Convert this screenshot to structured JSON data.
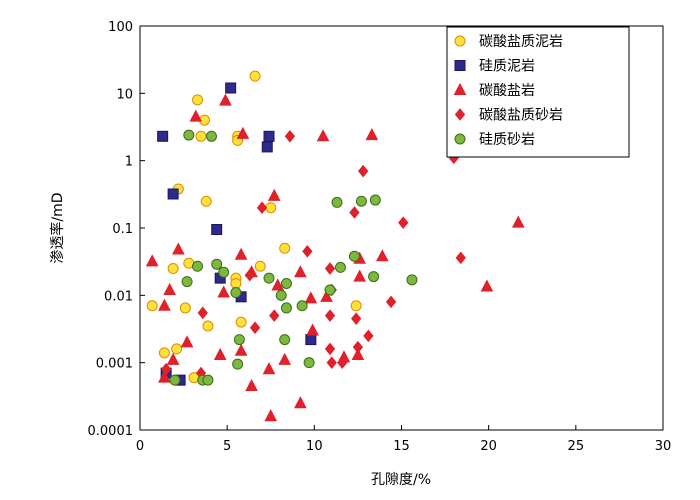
{
  "chart_data": {
    "type": "scatter",
    "xlabel": "孔隙度/%",
    "ylabel": "渗透率/mD",
    "xlim": [
      0,
      30
    ],
    "ylim": [
      0.0001,
      100
    ],
    "yscale": "log",
    "x_ticks": [
      "0",
      "5",
      "10",
      "15",
      "20",
      "25",
      "30"
    ],
    "y_ticks": [
      "0.0001",
      "0.001",
      "0.01",
      "0.1",
      "1",
      "10",
      "100"
    ],
    "grid": false,
    "legend_position": "top-right",
    "series": [
      {
        "name": "碳酸盐质泥岩",
        "marker": "circle",
        "fill": "#FFE33A",
        "stroke": "#E08A00",
        "points": [
          [
            6.6,
            18
          ],
          [
            3.3,
            8
          ],
          [
            3.7,
            4
          ],
          [
            3.5,
            2.3
          ],
          [
            5.6,
            2.3
          ],
          [
            5.6,
            2.0
          ],
          [
            2.2,
            0.38
          ],
          [
            3.8,
            0.25
          ],
          [
            7.5,
            0.2
          ],
          [
            8.3,
            0.05
          ],
          [
            2.8,
            0.03
          ],
          [
            1.9,
            0.025
          ],
          [
            6.9,
            0.027
          ],
          [
            5.5,
            0.018
          ],
          [
            5.5,
            0.015
          ],
          [
            0.7,
            0.007
          ],
          [
            2.6,
            0.0065
          ],
          [
            3.9,
            0.0035
          ],
          [
            12.4,
            0.007
          ],
          [
            5.8,
            0.004
          ],
          [
            2.1,
            0.0016
          ],
          [
            1.4,
            0.0014
          ],
          [
            3.1,
            0.0006
          ]
        ]
      },
      {
        "name": "硅质泥岩",
        "marker": "square",
        "fill": "#2E2A8C",
        "stroke": "#1A175E",
        "points": [
          [
            1.3,
            2.3
          ],
          [
            5.2,
            12
          ],
          [
            7.4,
            2.3
          ],
          [
            7.3,
            1.6
          ],
          [
            1.9,
            0.32
          ],
          [
            4.4,
            0.095
          ],
          [
            4.6,
            0.018
          ],
          [
            5.8,
            0.0095
          ],
          [
            9.8,
            0.0022
          ],
          [
            1.5,
            0.0007
          ],
          [
            2.3,
            0.00055
          ]
        ]
      },
      {
        "name": "碳酸盐岩",
        "marker": "triangle",
        "fill": "#E0202A",
        "stroke": "#E0202A",
        "points": [
          [
            3.2,
            4.5
          ],
          [
            4.9,
            7.8
          ],
          [
            5.9,
            2.5
          ],
          [
            10.5,
            2.3
          ],
          [
            13.3,
            2.4
          ],
          [
            7.7,
            0.3
          ],
          [
            21.7,
            0.12
          ],
          [
            2.2,
            0.048
          ],
          [
            0.7,
            0.032
          ],
          [
            5.8,
            0.04
          ],
          [
            12.6,
            0.035
          ],
          [
            13.9,
            0.038
          ],
          [
            6.4,
            0.022
          ],
          [
            1.7,
            0.012
          ],
          [
            1.4,
            0.007
          ],
          [
            7.9,
            0.014
          ],
          [
            4.8,
            0.011
          ],
          [
            9.8,
            0.009
          ],
          [
            19.9,
            0.0135
          ],
          [
            12.6,
            0.019
          ],
          [
            10.7,
            0.0095
          ],
          [
            9.2,
            0.022
          ],
          [
            4.6,
            0.0013
          ],
          [
            5.8,
            0.0015
          ],
          [
            8.3,
            0.0011
          ],
          [
            11.7,
            0.0012
          ],
          [
            12.5,
            0.0013
          ],
          [
            9.9,
            0.003
          ],
          [
            1.9,
            0.0011
          ],
          [
            2.7,
            0.002
          ],
          [
            7.4,
            0.0008
          ],
          [
            6.4,
            0.00045
          ],
          [
            9.2,
            0.00025
          ],
          [
            7.5,
            0.00016
          ],
          [
            1.4,
            0.0006
          ]
        ]
      },
      {
        "name": "碳酸盐质砂岩",
        "marker": "diamond",
        "fill": "#E0202A",
        "stroke": "#E0202A",
        "points": [
          [
            8.6,
            2.3
          ],
          [
            12.8,
            0.7
          ],
          [
            18.0,
            1.1
          ],
          [
            7.0,
            0.2
          ],
          [
            12.3,
            0.17
          ],
          [
            15.1,
            0.12
          ],
          [
            9.6,
            0.045
          ],
          [
            18.4,
            0.036
          ],
          [
            10.9,
            0.025
          ],
          [
            6.3,
            0.02
          ],
          [
            11.0,
            0.012
          ],
          [
            14.4,
            0.008
          ],
          [
            3.6,
            0.0055
          ],
          [
            7.7,
            0.005
          ],
          [
            10.9,
            0.005
          ],
          [
            12.4,
            0.0045
          ],
          [
            6.6,
            0.0033
          ],
          [
            13.1,
            0.0025
          ],
          [
            10.9,
            0.0016
          ],
          [
            12.5,
            0.0017
          ],
          [
            11.0,
            0.001
          ],
          [
            11.6,
            0.001
          ],
          [
            3.5,
            0.0007
          ],
          [
            1.5,
            0.0008
          ]
        ]
      },
      {
        "name": "硅质砂岩",
        "marker": "circle",
        "fill": "#7DB83E",
        "stroke": "#3E6B1A",
        "points": [
          [
            2.8,
            2.4
          ],
          [
            4.1,
            2.3
          ],
          [
            11.3,
            0.24
          ],
          [
            12.7,
            0.25
          ],
          [
            13.5,
            0.26
          ],
          [
            4.4,
            0.029
          ],
          [
            3.3,
            0.027
          ],
          [
            4.8,
            0.022
          ],
          [
            12.3,
            0.038
          ],
          [
            11.5,
            0.026
          ],
          [
            7.4,
            0.018
          ],
          [
            5.5,
            0.011
          ],
          [
            2.7,
            0.016
          ],
          [
            8.4,
            0.015
          ],
          [
            13.4,
            0.019
          ],
          [
            15.6,
            0.017
          ],
          [
            8.1,
            0.01
          ],
          [
            9.3,
            0.007
          ],
          [
            8.4,
            0.0065
          ],
          [
            10.9,
            0.012
          ],
          [
            5.7,
            0.0022
          ],
          [
            8.3,
            0.0022
          ],
          [
            9.7,
            0.001
          ],
          [
            5.6,
            0.00095
          ],
          [
            3.6,
            0.00055
          ],
          [
            3.9,
            0.00055
          ],
          [
            2.0,
            0.00055
          ]
        ]
      }
    ]
  }
}
